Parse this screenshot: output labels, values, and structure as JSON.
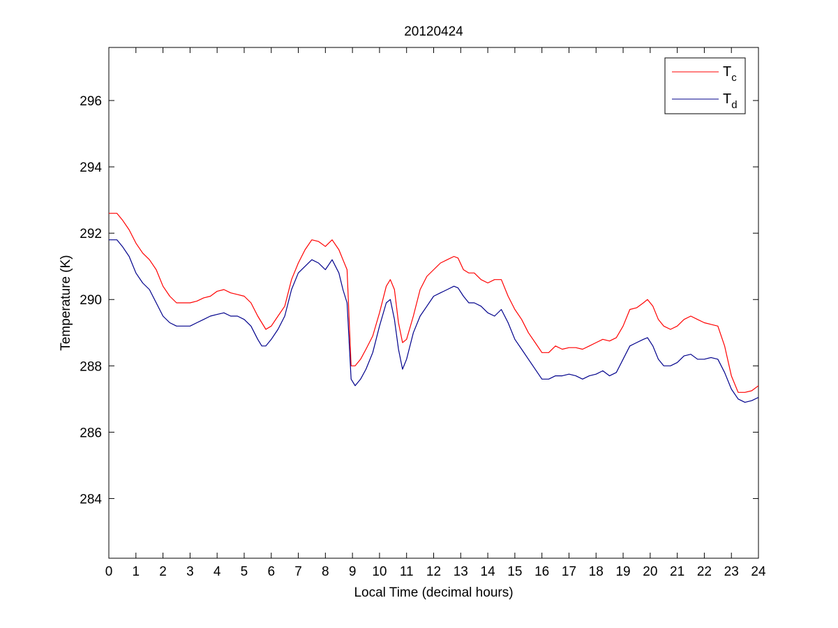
{
  "chart_data": {
    "type": "line",
    "title": "20120424",
    "xlabel": "Local Time (decimal hours)",
    "ylabel": "Temperature (K)",
    "xlim": [
      0,
      24
    ],
    "ylim": [
      282.2,
      297.6
    ],
    "xticks": [
      0,
      1,
      2,
      3,
      4,
      5,
      6,
      7,
      8,
      9,
      10,
      11,
      12,
      13,
      14,
      15,
      16,
      17,
      18,
      19,
      20,
      21,
      22,
      23,
      24
    ],
    "yticks": [
      284,
      286,
      288,
      290,
      292,
      294,
      296
    ],
    "grid": false,
    "legend_position": "top-right",
    "series": [
      {
        "name": "T",
        "name_subscript": "c",
        "color": "#ff0000",
        "x": [
          0,
          0.3,
          0.5,
          0.75,
          1,
          1.25,
          1.5,
          1.75,
          2,
          2.25,
          2.5,
          3,
          3.25,
          3.5,
          3.75,
          4,
          4.25,
          4.5,
          4.75,
          5,
          5.25,
          5.5,
          5.65,
          5.8,
          6,
          6.25,
          6.5,
          6.75,
          7,
          7.25,
          7.5,
          7.75,
          8,
          8.25,
          8.5,
          8.65,
          8.8,
          8.95,
          9.1,
          9.3,
          9.5,
          9.75,
          10,
          10.25,
          10.4,
          10.55,
          10.7,
          10.85,
          11,
          11.25,
          11.5,
          11.75,
          12,
          12.25,
          12.5,
          12.75,
          12.9,
          13.1,
          13.3,
          13.5,
          13.75,
          14,
          14.25,
          14.5,
          14.75,
          15,
          15.25,
          15.5,
          15.75,
          16,
          16.25,
          16.5,
          16.75,
          17,
          17.25,
          17.5,
          17.75,
          18,
          18.25,
          18.5,
          18.75,
          19,
          19.25,
          19.5,
          19.75,
          19.9,
          20.1,
          20.3,
          20.5,
          20.75,
          21,
          21.25,
          21.5,
          21.75,
          22,
          22.25,
          22.5,
          22.75,
          23,
          23.25,
          23.5,
          23.75,
          24
        ],
        "y": [
          292.6,
          292.6,
          292.4,
          292.1,
          291.7,
          291.4,
          291.2,
          290.9,
          290.4,
          290.1,
          289.9,
          289.9,
          289.95,
          290.05,
          290.1,
          290.25,
          290.3,
          290.2,
          290.15,
          290.1,
          289.9,
          289.5,
          289.3,
          289.1,
          289.2,
          289.5,
          289.8,
          290.6,
          291.1,
          291.5,
          291.8,
          291.75,
          291.6,
          291.8,
          291.5,
          291.2,
          290.9,
          288.0,
          288.0,
          288.2,
          288.5,
          288.9,
          289.6,
          290.4,
          290.6,
          290.3,
          289.3,
          288.7,
          288.8,
          289.5,
          290.3,
          290.7,
          290.9,
          291.1,
          291.2,
          291.3,
          291.25,
          290.9,
          290.8,
          290.8,
          290.6,
          290.5,
          290.6,
          290.6,
          290.1,
          289.7,
          289.4,
          289.0,
          288.7,
          288.4,
          288.4,
          288.6,
          288.5,
          288.55,
          288.55,
          288.5,
          288.6,
          288.7,
          288.8,
          288.75,
          288.85,
          289.2,
          289.7,
          289.75,
          289.9,
          290.0,
          289.8,
          289.4,
          289.2,
          289.1,
          289.2,
          289.4,
          289.5,
          289.4,
          289.3,
          289.25,
          289.2,
          288.6,
          287.7,
          287.2,
          287.2,
          287.25,
          287.4
        ]
      },
      {
        "name": "T",
        "name_subscript": "d",
        "color": "#00008b",
        "x": [
          0,
          0.3,
          0.5,
          0.75,
          1,
          1.25,
          1.5,
          1.75,
          2,
          2.25,
          2.5,
          3,
          3.25,
          3.5,
          3.75,
          4,
          4.25,
          4.5,
          4.75,
          5,
          5.25,
          5.5,
          5.65,
          5.8,
          6,
          6.25,
          6.5,
          6.75,
          7,
          7.25,
          7.5,
          7.75,
          8,
          8.25,
          8.5,
          8.65,
          8.8,
          8.95,
          9.1,
          9.3,
          9.5,
          9.75,
          10,
          10.25,
          10.4,
          10.55,
          10.7,
          10.85,
          11,
          11.25,
          11.5,
          11.75,
          12,
          12.25,
          12.5,
          12.75,
          12.9,
          13.1,
          13.3,
          13.5,
          13.75,
          14,
          14.25,
          14.5,
          14.75,
          15,
          15.25,
          15.5,
          15.75,
          16,
          16.25,
          16.5,
          16.75,
          17,
          17.25,
          17.5,
          17.75,
          18,
          18.25,
          18.5,
          18.75,
          19,
          19.25,
          19.5,
          19.75,
          19.9,
          20.1,
          20.3,
          20.5,
          20.75,
          21,
          21.25,
          21.5,
          21.75,
          22,
          22.25,
          22.5,
          22.75,
          23,
          23.25,
          23.5,
          23.75,
          24
        ],
        "y": [
          291.8,
          291.8,
          291.6,
          291.3,
          290.8,
          290.5,
          290.3,
          289.9,
          289.5,
          289.3,
          289.2,
          289.2,
          289.3,
          289.4,
          289.5,
          289.55,
          289.6,
          289.5,
          289.5,
          289.4,
          289.2,
          288.8,
          288.6,
          288.6,
          288.8,
          289.1,
          289.5,
          290.3,
          290.8,
          291.0,
          291.2,
          291.1,
          290.9,
          291.2,
          290.8,
          290.3,
          289.9,
          287.6,
          287.4,
          287.6,
          287.9,
          288.4,
          289.2,
          289.9,
          290.0,
          289.4,
          288.5,
          287.9,
          288.2,
          289.0,
          289.5,
          289.8,
          290.1,
          290.2,
          290.3,
          290.4,
          290.35,
          290.1,
          289.9,
          289.9,
          289.8,
          289.6,
          289.5,
          289.7,
          289.3,
          288.8,
          288.5,
          288.2,
          287.9,
          287.6,
          287.6,
          287.7,
          287.7,
          287.75,
          287.7,
          287.6,
          287.7,
          287.75,
          287.85,
          287.7,
          287.8,
          288.2,
          288.6,
          288.7,
          288.8,
          288.85,
          288.6,
          288.2,
          288.0,
          288.0,
          288.1,
          288.3,
          288.35,
          288.2,
          288.2,
          288.25,
          288.2,
          287.8,
          287.3,
          287.0,
          286.9,
          286.95,
          287.05
        ]
      }
    ]
  }
}
